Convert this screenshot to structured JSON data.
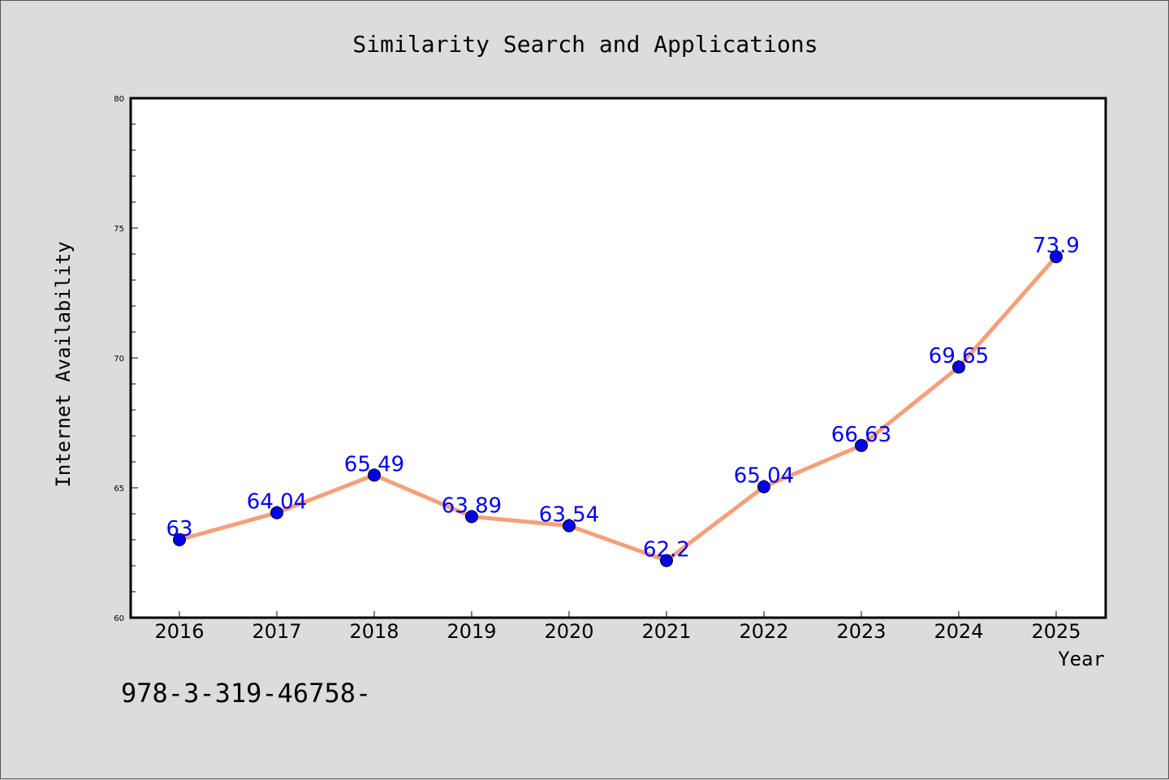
{
  "chart_data": {
    "type": "line",
    "title": "Similarity Search and Applications",
    "xlabel": "Year",
    "ylabel": "Internet Availability",
    "categories": [
      "2016",
      "2017",
      "2018",
      "2019",
      "2020",
      "2021",
      "2022",
      "2023",
      "2024",
      "2025"
    ],
    "values": [
      63,
      64.04,
      65.49,
      63.89,
      63.54,
      62.2,
      65.04,
      66.63,
      69.65,
      73.9
    ],
    "value_labels": [
      "63",
      "64.04",
      "65.49",
      "63.89",
      "63.54",
      "62.2",
      "65.04",
      "66.63",
      "69.65",
      "73.9"
    ],
    "ylim": [
      60,
      80
    ],
    "yticks": [
      60,
      65,
      70,
      75,
      80
    ],
    "grid": false,
    "colors": {
      "line": "#f4a07a",
      "marker": "#0000ee",
      "label": "#0000ee",
      "background": "#dcdcdc",
      "plot_background": "#ffffff"
    }
  },
  "footer": {
    "text": "978-3-319-46758-"
  }
}
